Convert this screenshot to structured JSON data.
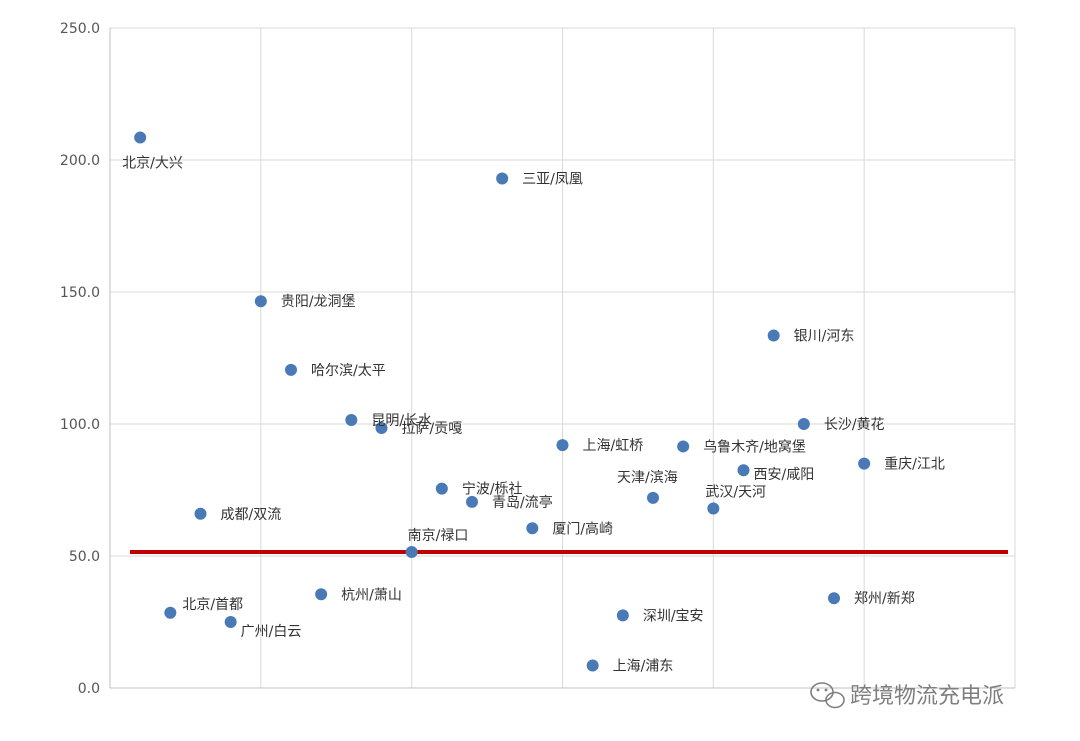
{
  "chart_data": {
    "type": "scatter",
    "ylim": [
      0,
      250
    ],
    "xlim": [
      0,
      30
    ],
    "y_ticks": [
      "0.0",
      "50.0",
      "100.0",
      "150.0",
      "200.0",
      "250.0"
    ],
    "grid": true,
    "reference_line": {
      "y": 51.5,
      "color": "#c00000"
    },
    "point_color": "#4a7ab5",
    "points": [
      {
        "x": 1,
        "y": 208.5,
        "label": "北京/大兴"
      },
      {
        "x": 2,
        "y": 28.5,
        "label": "北京/首都"
      },
      {
        "x": 3,
        "y": 66,
        "label": "成都/双流"
      },
      {
        "x": 4,
        "y": 25,
        "label": "广州/白云"
      },
      {
        "x": 5,
        "y": 146.5,
        "label": "贵阳/龙洞堡"
      },
      {
        "x": 6,
        "y": 120.5,
        "label": "哈尔滨/太平"
      },
      {
        "x": 7,
        "y": 35.5,
        "label": "杭州/萧山"
      },
      {
        "x": 8,
        "y": 101.5,
        "label": "昆明/长水"
      },
      {
        "x": 9,
        "y": 98.5,
        "label": "拉萨/贡嘎"
      },
      {
        "x": 10,
        "y": 51.5,
        "label": "南京/禄口"
      },
      {
        "x": 11,
        "y": 75.5,
        "label": "宁波/栎社"
      },
      {
        "x": 12,
        "y": 70.5,
        "label": "青岛/流亭"
      },
      {
        "x": 13,
        "y": 193,
        "label": "三亚/凤凰"
      },
      {
        "x": 14,
        "y": 60.5,
        "label": "厦门/高崎"
      },
      {
        "x": 15,
        "y": 92,
        "label": "上海/虹桥"
      },
      {
        "x": 16,
        "y": 8.5,
        "label": "上海/浦东"
      },
      {
        "x": 17,
        "y": 27.5,
        "label": "深圳/宝安"
      },
      {
        "x": 18,
        "y": 72,
        "label": "天津/滨海"
      },
      {
        "x": 19,
        "y": 91.5,
        "label": "乌鲁木齐/地窝堡"
      },
      {
        "x": 20,
        "y": 68,
        "label": "武汉/天河"
      },
      {
        "x": 21,
        "y": 82.5,
        "label": "西安/咸阳"
      },
      {
        "x": 22,
        "y": 133.5,
        "label": "银川/河东"
      },
      {
        "x": 23,
        "y": 100,
        "label": "长沙/黄花"
      },
      {
        "x": 24,
        "y": 34,
        "label": "郑州/新郑"
      },
      {
        "x": 25,
        "y": 85,
        "label": "重庆/江北"
      }
    ]
  },
  "watermark": {
    "text": "跨境物流充电派",
    "icon": "wechat-icon"
  }
}
